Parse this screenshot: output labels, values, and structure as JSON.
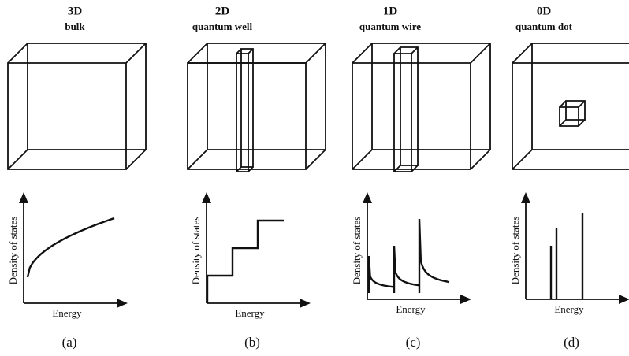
{
  "panels": [
    {
      "dimension": "3D",
      "name": "bulk",
      "y_label": "Density of states",
      "x_label": "Energy",
      "caption": "(a)"
    },
    {
      "dimension": "2D",
      "name": "quantum well",
      "y_label": "Density of states",
      "x_label": "Energy",
      "caption": "(b)"
    },
    {
      "dimension": "1D",
      "name": "quantum wire",
      "y_label": "Density of states",
      "x_label": "Energy",
      "caption": "(c)"
    },
    {
      "dimension": "0D",
      "name": "quantum dot",
      "y_label": "Density of states",
      "x_label": "Energy",
      "caption": "(d)"
    }
  ]
}
